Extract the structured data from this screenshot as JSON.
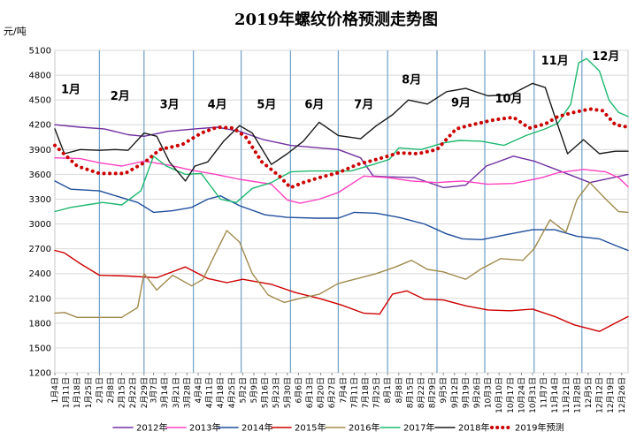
{
  "chart_data": {
    "type": "line",
    "title": "2019年螺纹价格预测走势图",
    "ylabel": "元/吨",
    "xlabel": "",
    "ylim": [
      1200,
      5100
    ],
    "yticks": [
      1200,
      1500,
      1800,
      2100,
      2400,
      2700,
      3000,
      3300,
      3600,
      3900,
      4200,
      4500,
      4800,
      5100
    ],
    "xlim": [
      4,
      364
    ],
    "x_unit": "day of year",
    "grid": true,
    "legend_position": "bottom",
    "x_tick_labels": [
      "1月4日",
      "1月11日",
      "1月18日",
      "1月25日",
      "2月1日",
      "2月8日",
      "2月15日",
      "2月22日",
      "2月29日",
      "3月7日",
      "3月14日",
      "3月21日",
      "3月28日",
      "4月4日",
      "4月11日",
      "4月18日",
      "4月25日",
      "5月2日",
      "5月9日",
      "5月16日",
      "5月23日",
      "5月30日",
      "6月6日",
      "6月13日",
      "6月20日",
      "6月27日",
      "7月4日",
      "7月11日",
      "7月18日",
      "7月25日",
      "8月1日",
      "8月8日",
      "8月15日",
      "8月22日",
      "8月29日",
      "9月5日",
      "9月12日",
      "9月19日",
      "9月26日",
      "10月3日",
      "10月10日",
      "10月17日",
      "10月24日",
      "10月31日",
      "11月7日",
      "11月14日",
      "11月21日",
      "11月28日",
      "12月5日",
      "12月12日",
      "12月19日",
      "12月26日"
    ],
    "x_tick_days": [
      4,
      11,
      18,
      25,
      32,
      39,
      46,
      53,
      60,
      66,
      73,
      80,
      87,
      94,
      101,
      108,
      115,
      122,
      129,
      136,
      143,
      150,
      157,
      164,
      171,
      178,
      185,
      192,
      199,
      206,
      213,
      220,
      227,
      234,
      241,
      248,
      255,
      262,
      269,
      276,
      283,
      290,
      297,
      304,
      311,
      318,
      325,
      332,
      339,
      346,
      353,
      360
    ],
    "month_separator_days": [
      32,
      60,
      91,
      121,
      152,
      182,
      213,
      244,
      274,
      305,
      335
    ],
    "month_labels": [
      {
        "text": "1月",
        "day": 14,
        "value": 4580
      },
      {
        "text": "2月",
        "day": 45,
        "value": 4500
      },
      {
        "text": "3月",
        "day": 76,
        "value": 4400
      },
      {
        "text": "4月",
        "day": 106,
        "value": 4400
      },
      {
        "text": "5月",
        "day": 137,
        "value": 4400
      },
      {
        "text": "6月",
        "day": 167,
        "value": 4400
      },
      {
        "text": "7月",
        "day": 198,
        "value": 4400
      },
      {
        "text": "8月",
        "day": 228,
        "value": 4700
      },
      {
        "text": "9月",
        "day": 259,
        "value": 4420
      },
      {
        "text": "10月",
        "day": 289,
        "value": 4470
      },
      {
        "text": "11月",
        "day": 318,
        "value": 4930
      },
      {
        "text": "12月",
        "day": 350,
        "value": 4980
      }
    ],
    "series": [
      {
        "name": "2012年",
        "color": "#7030a0",
        "dashed": false,
        "points": [
          [
            4,
            4200
          ],
          [
            20,
            4170
          ],
          [
            35,
            4150
          ],
          [
            50,
            4080
          ],
          [
            60,
            4060
          ],
          [
            75,
            4120
          ],
          [
            92,
            4150
          ],
          [
            106,
            4170
          ],
          [
            120,
            4120
          ],
          [
            135,
            4020
          ],
          [
            152,
            3950
          ],
          [
            170,
            3920
          ],
          [
            182,
            3900
          ],
          [
            196,
            3800
          ],
          [
            204,
            3580
          ],
          [
            213,
            3570
          ],
          [
            230,
            3560
          ],
          [
            248,
            3440
          ],
          [
            262,
            3470
          ],
          [
            275,
            3700
          ],
          [
            292,
            3820
          ],
          [
            305,
            3760
          ],
          [
            320,
            3650
          ],
          [
            340,
            3500
          ],
          [
            352,
            3550
          ],
          [
            364,
            3600
          ]
        ]
      },
      {
        "name": "2013年",
        "color": "#ff40c0",
        "dashed": false,
        "points": [
          [
            4,
            3800
          ],
          [
            20,
            3790
          ],
          [
            32,
            3740
          ],
          [
            46,
            3700
          ],
          [
            60,
            3760
          ],
          [
            76,
            3710
          ],
          [
            90,
            3650
          ],
          [
            105,
            3600
          ],
          [
            120,
            3540
          ],
          [
            140,
            3480
          ],
          [
            150,
            3290
          ],
          [
            158,
            3250
          ],
          [
            170,
            3300
          ],
          [
            182,
            3380
          ],
          [
            198,
            3580
          ],
          [
            213,
            3560
          ],
          [
            228,
            3520
          ],
          [
            244,
            3500
          ],
          [
            260,
            3520
          ],
          [
            276,
            3480
          ],
          [
            292,
            3490
          ],
          [
            310,
            3560
          ],
          [
            320,
            3620
          ],
          [
            336,
            3660
          ],
          [
            350,
            3630
          ],
          [
            358,
            3560
          ],
          [
            364,
            3450
          ]
        ]
      },
      {
        "name": "2014年",
        "color": "#1f4e9b",
        "dashed": false,
        "points": [
          [
            4,
            3520
          ],
          [
            14,
            3420
          ],
          [
            32,
            3400
          ],
          [
            44,
            3330
          ],
          [
            56,
            3260
          ],
          [
            66,
            3140
          ],
          [
            78,
            3160
          ],
          [
            90,
            3200
          ],
          [
            100,
            3300
          ],
          [
            108,
            3340
          ],
          [
            120,
            3220
          ],
          [
            136,
            3110
          ],
          [
            150,
            3080
          ],
          [
            168,
            3070
          ],
          [
            182,
            3070
          ],
          [
            192,
            3140
          ],
          [
            206,
            3130
          ],
          [
            220,
            3080
          ],
          [
            236,
            3000
          ],
          [
            250,
            2880
          ],
          [
            260,
            2820
          ],
          [
            272,
            2810
          ],
          [
            290,
            2880
          ],
          [
            304,
            2930
          ],
          [
            318,
            2930
          ],
          [
            332,
            2850
          ],
          [
            346,
            2820
          ],
          [
            356,
            2740
          ],
          [
            364,
            2680
          ]
        ]
      },
      {
        "name": "2015年",
        "color": "#cc0000",
        "dashed": false,
        "points": [
          [
            4,
            2680
          ],
          [
            10,
            2650
          ],
          [
            20,
            2520
          ],
          [
            32,
            2380
          ],
          [
            50,
            2370
          ],
          [
            68,
            2350
          ],
          [
            86,
            2480
          ],
          [
            100,
            2340
          ],
          [
            112,
            2290
          ],
          [
            122,
            2330
          ],
          [
            140,
            2270
          ],
          [
            155,
            2170
          ],
          [
            170,
            2100
          ],
          [
            184,
            2020
          ],
          [
            198,
            1920
          ],
          [
            208,
            1910
          ],
          [
            216,
            2150
          ],
          [
            225,
            2190
          ],
          [
            236,
            2090
          ],
          [
            248,
            2080
          ],
          [
            262,
            2010
          ],
          [
            276,
            1960
          ],
          [
            290,
            1950
          ],
          [
            304,
            1970
          ],
          [
            318,
            1880
          ],
          [
            330,
            1780
          ],
          [
            346,
            1700
          ],
          [
            356,
            1800
          ],
          [
            364,
            1880
          ]
        ]
      },
      {
        "name": "2016年",
        "color": "#a08a4c",
        "dashed": false,
        "points": [
          [
            4,
            1920
          ],
          [
            10,
            1930
          ],
          [
            18,
            1870
          ],
          [
            32,
            1870
          ],
          [
            46,
            1870
          ],
          [
            56,
            1990
          ],
          [
            60,
            2400
          ],
          [
            68,
            2200
          ],
          [
            78,
            2380
          ],
          [
            90,
            2250
          ],
          [
            97,
            2330
          ],
          [
            105,
            2650
          ],
          [
            112,
            2920
          ],
          [
            120,
            2780
          ],
          [
            128,
            2400
          ],
          [
            138,
            2140
          ],
          [
            148,
            2050
          ],
          [
            158,
            2100
          ],
          [
            170,
            2150
          ],
          [
            182,
            2280
          ],
          [
            196,
            2350
          ],
          [
            206,
            2400
          ],
          [
            218,
            2480
          ],
          [
            228,
            2560
          ],
          [
            238,
            2450
          ],
          [
            248,
            2420
          ],
          [
            262,
            2330
          ],
          [
            272,
            2460
          ],
          [
            284,
            2580
          ],
          [
            298,
            2560
          ],
          [
            305,
            2700
          ],
          [
            315,
            3050
          ],
          [
            325,
            2900
          ],
          [
            332,
            3300
          ],
          [
            340,
            3500
          ],
          [
            350,
            3300
          ],
          [
            358,
            3150
          ],
          [
            364,
            3140
          ]
        ]
      },
      {
        "name": "2017年",
        "color": "#1db86f",
        "dashed": false,
        "points": [
          [
            4,
            3150
          ],
          [
            14,
            3200
          ],
          [
            24,
            3230
          ],
          [
            34,
            3260
          ],
          [
            46,
            3230
          ],
          [
            58,
            3400
          ],
          [
            66,
            3820
          ],
          [
            74,
            3700
          ],
          [
            86,
            3600
          ],
          [
            96,
            3610
          ],
          [
            108,
            3300
          ],
          [
            118,
            3260
          ],
          [
            128,
            3430
          ],
          [
            140,
            3500
          ],
          [
            152,
            3630
          ],
          [
            164,
            3640
          ],
          [
            176,
            3640
          ],
          [
            190,
            3640
          ],
          [
            204,
            3720
          ],
          [
            214,
            3780
          ],
          [
            220,
            3920
          ],
          [
            234,
            3900
          ],
          [
            248,
            3980
          ],
          [
            258,
            4010
          ],
          [
            272,
            4000
          ],
          [
            286,
            3950
          ],
          [
            300,
            4070
          ],
          [
            312,
            4150
          ],
          [
            320,
            4220
          ],
          [
            328,
            4450
          ],
          [
            333,
            4950
          ],
          [
            338,
            5000
          ],
          [
            346,
            4850
          ],
          [
            352,
            4500
          ],
          [
            358,
            4350
          ],
          [
            364,
            4300
          ]
        ]
      },
      {
        "name": "2018年",
        "color": "#1a1a1a",
        "dashed": false,
        "points": [
          [
            4,
            4150
          ],
          [
            10,
            3850
          ],
          [
            20,
            3900
          ],
          [
            32,
            3890
          ],
          [
            42,
            3900
          ],
          [
            50,
            3890
          ],
          [
            60,
            4100
          ],
          [
            68,
            4060
          ],
          [
            76,
            3750
          ],
          [
            86,
            3520
          ],
          [
            92,
            3700
          ],
          [
            100,
            3750
          ],
          [
            110,
            4000
          ],
          [
            120,
            4190
          ],
          [
            128,
            4100
          ],
          [
            140,
            3720
          ],
          [
            150,
            3850
          ],
          [
            160,
            4000
          ],
          [
            170,
            4230
          ],
          [
            182,
            4070
          ],
          [
            196,
            4030
          ],
          [
            206,
            4190
          ],
          [
            216,
            4320
          ],
          [
            226,
            4500
          ],
          [
            238,
            4450
          ],
          [
            250,
            4600
          ],
          [
            262,
            4640
          ],
          [
            276,
            4550
          ],
          [
            290,
            4560
          ],
          [
            304,
            4700
          ],
          [
            312,
            4650
          ],
          [
            318,
            4300
          ],
          [
            326,
            3850
          ],
          [
            336,
            4020
          ],
          [
            346,
            3850
          ],
          [
            356,
            3880
          ],
          [
            364,
            3880
          ]
        ]
      },
      {
        "name": "2019年预测",
        "color": "#cc0000",
        "dashed": true,
        "points": [
          [
            4,
            3950
          ],
          [
            18,
            3700
          ],
          [
            32,
            3610
          ],
          [
            48,
            3610
          ],
          [
            60,
            3740
          ],
          [
            70,
            3900
          ],
          [
            84,
            3960
          ],
          [
            96,
            4100
          ],
          [
            106,
            4170
          ],
          [
            116,
            4160
          ],
          [
            124,
            4050
          ],
          [
            134,
            3750
          ],
          [
            145,
            3580
          ],
          [
            152,
            3440
          ],
          [
            160,
            3500
          ],
          [
            170,
            3560
          ],
          [
            182,
            3620
          ],
          [
            194,
            3720
          ],
          [
            206,
            3780
          ],
          [
            220,
            3860
          ],
          [
            232,
            3850
          ],
          [
            244,
            3900
          ],
          [
            256,
            4150
          ],
          [
            266,
            4200
          ],
          [
            280,
            4260
          ],
          [
            292,
            4290
          ],
          [
            302,
            4160
          ],
          [
            312,
            4210
          ],
          [
            320,
            4300
          ],
          [
            330,
            4350
          ],
          [
            340,
            4390
          ],
          [
            348,
            4370
          ],
          [
            356,
            4200
          ],
          [
            364,
            4170
          ]
        ]
      }
    ]
  }
}
